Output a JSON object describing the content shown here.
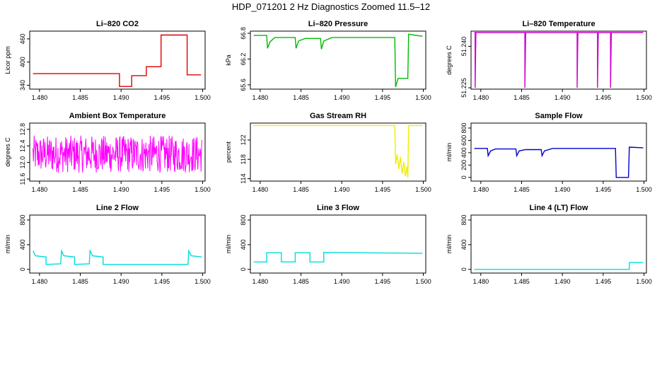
{
  "title": "HDP_071201  2 Hz Diagnostics Zoomed 11.5–12",
  "chart_data": [
    {
      "id": "co2",
      "type": "line",
      "title": "Li–820 CO2",
      "ylabel": "Licor ppm",
      "color": "#dd0000",
      "xlim": [
        1.4788,
        1.5003
      ],
      "ylim": [
        330,
        480
      ],
      "xticks": [
        1.48,
        1.485,
        1.49,
        1.495,
        1.5
      ],
      "xtick_labels": [
        "1.480",
        "1.485",
        "1.490",
        "1.495",
        "1.500"
      ],
      "yticks": [
        340,
        400,
        460
      ],
      "ytick_labels": [
        "340",
        "400",
        "460"
      ],
      "series": [
        {
          "points": [
            [
              1.4792,
              370
            ],
            [
              1.4898,
              370
            ],
            [
              1.4898,
              337
            ],
            [
              1.4913,
              337
            ],
            [
              1.4913,
              365
            ],
            [
              1.4931,
              365
            ],
            [
              1.4931,
              388
            ],
            [
              1.4949,
              388
            ],
            [
              1.4949,
              470
            ],
            [
              1.4981,
              470
            ],
            [
              1.4981,
              367
            ],
            [
              1.4998,
              367
            ]
          ]
        }
      ]
    },
    {
      "id": "pressure",
      "type": "line",
      "title": "Li–820 Pressure",
      "ylabel": "kPa",
      "color": "#00bb00",
      "xlim": [
        1.4788,
        1.5003
      ],
      "ylim": [
        65.5,
        66.85
      ],
      "xticks": [
        1.48,
        1.485,
        1.49,
        1.495,
        1.5
      ],
      "xtick_labels": [
        "1.480",
        "1.485",
        "1.490",
        "1.495",
        "1.500"
      ],
      "yticks": [
        65.6,
        66.2,
        66.8
      ],
      "ytick_labels": [
        "65.6",
        "66.2",
        "66.8"
      ],
      "series": [
        {
          "points": [
            [
              1.4792,
              66.75
            ],
            [
              1.4808,
              66.75
            ],
            [
              1.4809,
              66.45
            ],
            [
              1.4812,
              66.6
            ],
            [
              1.4818,
              66.7
            ],
            [
              1.4843,
              66.7
            ],
            [
              1.4844,
              66.45
            ],
            [
              1.4847,
              66.62
            ],
            [
              1.4855,
              66.68
            ],
            [
              1.4874,
              66.68
            ],
            [
              1.4875,
              66.43
            ],
            [
              1.4878,
              66.62
            ],
            [
              1.4888,
              66.7
            ],
            [
              1.4965,
              66.7
            ],
            [
              1.4966,
              65.55
            ],
            [
              1.4969,
              65.75
            ],
            [
              1.4981,
              65.75
            ],
            [
              1.4982,
              66.78
            ],
            [
              1.4988,
              66.76
            ],
            [
              1.4999,
              66.73
            ]
          ]
        }
      ]
    },
    {
      "id": "temperature",
      "type": "line",
      "title": "Li–820 Temperature",
      "ylabel": "degrees C",
      "color": "#cc00cc",
      "xlim": [
        1.4788,
        1.5003
      ],
      "ylim": [
        51.2245,
        51.2455
      ],
      "xticks": [
        1.48,
        1.485,
        1.49,
        1.495,
        1.5
      ],
      "xtick_labels": [
        "1.480",
        "1.485",
        "1.490",
        "1.495",
        "1.500"
      ],
      "yticks": [
        51.225,
        51.24
      ],
      "ytick_labels": [
        "51.225",
        "51.240"
      ],
      "series": [
        {
          "points": [
            [
              1.4792,
              51.245
            ],
            [
              1.4793,
              51.245
            ],
            [
              1.4793,
              51.225
            ],
            [
              1.4794,
              51.245
            ],
            [
              1.4854,
              51.245
            ],
            [
              1.4854,
              51.225
            ],
            [
              1.4855,
              51.245
            ],
            [
              1.4918,
              51.245
            ],
            [
              1.4918,
              51.225
            ],
            [
              1.4919,
              51.245
            ],
            [
              1.4943,
              51.245
            ],
            [
              1.4943,
              51.225
            ],
            [
              1.4944,
              51.245
            ],
            [
              1.4959,
              51.245
            ],
            [
              1.4959,
              51.225
            ],
            [
              1.496,
              51.245
            ],
            [
              1.4999,
              51.245
            ]
          ]
        }
      ]
    },
    {
      "id": "ambient",
      "type": "line",
      "title": "Ambient Box Temperature",
      "ylabel": "degrees C",
      "color": "#ff00ff",
      "xlim": [
        1.4788,
        1.5003
      ],
      "ylim": [
        11.55,
        12.95
      ],
      "xticks": [
        1.48,
        1.485,
        1.49,
        1.495,
        1.5
      ],
      "xtick_labels": [
        "1.480",
        "1.485",
        "1.490",
        "1.495",
        "1.500"
      ],
      "yticks": [
        11.6,
        12.0,
        12.4,
        12.8
      ],
      "ytick_labels": [
        "11.6",
        "12.0",
        "12.4",
        "12.8"
      ],
      "noise": {
        "x0": 1.4792,
        "x1": 1.4999,
        "center": 12.2,
        "amplitude": 0.45,
        "count": 420
      },
      "series": []
    },
    {
      "id": "rh",
      "type": "line",
      "title": "Gas Stream RH",
      "ylabel": "percent",
      "color": "#eeee00",
      "xlim": [
        1.4788,
        1.5003
      ],
      "ylim": [
        113.5,
        125.5
      ],
      "xticks": [
        1.48,
        1.485,
        1.49,
        1.495,
        1.5
      ],
      "xtick_labels": [
        "1.480",
        "1.485",
        "1.490",
        "1.495",
        "1.500"
      ],
      "yticks": [
        114,
        118,
        122
      ],
      "ytick_labels": [
        "114",
        "118",
        "122"
      ],
      "series": [
        {
          "points": [
            [
              1.4792,
              125
            ],
            [
              1.4965,
              125
            ],
            [
              1.4966,
              117
            ],
            [
              1.4968,
              119
            ],
            [
              1.497,
              116
            ],
            [
              1.4972,
              118.5
            ],
            [
              1.4974,
              115
            ],
            [
              1.4976,
              117.5
            ],
            [
              1.4978,
              114.5
            ],
            [
              1.498,
              116.5
            ],
            [
              1.4981,
              114.2
            ],
            [
              1.4982,
              125
            ],
            [
              1.4999,
              125
            ]
          ]
        }
      ]
    },
    {
      "id": "sample",
      "type": "line",
      "title": "Sample Flow",
      "ylabel": "ml/min",
      "color": "#0000cc",
      "xlim": [
        1.4788,
        1.5003
      ],
      "ylim": [
        -60,
        880
      ],
      "xticks": [
        1.48,
        1.485,
        1.49,
        1.495,
        1.5
      ],
      "xtick_labels": [
        "1.480",
        "1.485",
        "1.490",
        "1.495",
        "1.500"
      ],
      "yticks": [
        0,
        200,
        400,
        600,
        800
      ],
      "ytick_labels": [
        "0",
        "200",
        "400",
        "600",
        "800"
      ],
      "series": [
        {
          "points": [
            [
              1.4792,
              470
            ],
            [
              1.4808,
              470
            ],
            [
              1.4809,
              350
            ],
            [
              1.4812,
              430
            ],
            [
              1.4818,
              460
            ],
            [
              1.4843,
              460
            ],
            [
              1.4844,
              350
            ],
            [
              1.4847,
              430
            ],
            [
              1.4855,
              450
            ],
            [
              1.4874,
              450
            ],
            [
              1.4875,
              350
            ],
            [
              1.4878,
              430
            ],
            [
              1.4888,
              470
            ],
            [
              1.4965,
              470
            ],
            [
              1.4966,
              0
            ],
            [
              1.4981,
              0
            ],
            [
              1.4982,
              490
            ],
            [
              1.4999,
              480
            ]
          ]
        }
      ]
    },
    {
      "id": "line2",
      "type": "line",
      "title": "Line 2 Flow",
      "ylabel": "ml/min",
      "color": "#00dddd",
      "xlim": [
        1.4788,
        1.5003
      ],
      "ylim": [
        -60,
        880
      ],
      "xticks": [
        1.48,
        1.485,
        1.49,
        1.495,
        1.5
      ],
      "xtick_labels": [
        "1.480",
        "1.485",
        "1.490",
        "1.495",
        "1.500"
      ],
      "yticks": [
        0,
        400,
        800
      ],
      "ytick_labels": [
        "0",
        "400",
        "800"
      ],
      "series": [
        {
          "points": [
            [
              1.4792,
              300
            ],
            [
              1.4795,
              220
            ],
            [
              1.4808,
              200
            ],
            [
              1.4808,
              80
            ],
            [
              1.4826,
              90
            ],
            [
              1.4827,
              300
            ],
            [
              1.483,
              220
            ],
            [
              1.4843,
              200
            ],
            [
              1.4843,
              80
            ],
            [
              1.4861,
              90
            ],
            [
              1.4862,
              300
            ],
            [
              1.4865,
              220
            ],
            [
              1.4878,
              200
            ],
            [
              1.4878,
              80
            ],
            [
              1.4982,
              80
            ],
            [
              1.4983,
              300
            ],
            [
              1.4986,
              220
            ],
            [
              1.4999,
              200
            ]
          ]
        }
      ]
    },
    {
      "id": "line3",
      "type": "line",
      "title": "Line 3 Flow",
      "ylabel": "ml/min",
      "color": "#00dddd",
      "xlim": [
        1.4788,
        1.5003
      ],
      "ylim": [
        -60,
        880
      ],
      "xticks": [
        1.48,
        1.485,
        1.49,
        1.495,
        1.5
      ],
      "xtick_labels": [
        "1.480",
        "1.485",
        "1.490",
        "1.495",
        "1.500"
      ],
      "yticks": [
        0,
        400,
        800
      ],
      "ytick_labels": [
        "0",
        "400",
        "800"
      ],
      "series": [
        {
          "points": [
            [
              1.4792,
              120
            ],
            [
              1.4808,
              120
            ],
            [
              1.4808,
              270
            ],
            [
              1.4826,
              270
            ],
            [
              1.4826,
              120
            ],
            [
              1.4843,
              120
            ],
            [
              1.4843,
              270
            ],
            [
              1.4861,
              270
            ],
            [
              1.4861,
              120
            ],
            [
              1.4878,
              120
            ],
            [
              1.4878,
              275
            ],
            [
              1.4999,
              260
            ]
          ]
        }
      ]
    },
    {
      "id": "line4",
      "type": "line",
      "title": "Line 4 (LT) Flow",
      "ylabel": "ml/min",
      "color": "#00dddd",
      "xlim": [
        1.4788,
        1.5003
      ],
      "ylim": [
        -60,
        880
      ],
      "xticks": [
        1.48,
        1.485,
        1.49,
        1.495,
        1.5
      ],
      "xtick_labels": [
        "1.480",
        "1.485",
        "1.490",
        "1.495",
        "1.500"
      ],
      "yticks": [
        0,
        400,
        800
      ],
      "ytick_labels": [
        "0",
        "400",
        "800"
      ],
      "series": [
        {
          "points": [
            [
              1.4792,
              0
            ],
            [
              1.4982,
              0
            ],
            [
              1.4982,
              110
            ],
            [
              1.4999,
              110
            ]
          ]
        }
      ]
    }
  ]
}
